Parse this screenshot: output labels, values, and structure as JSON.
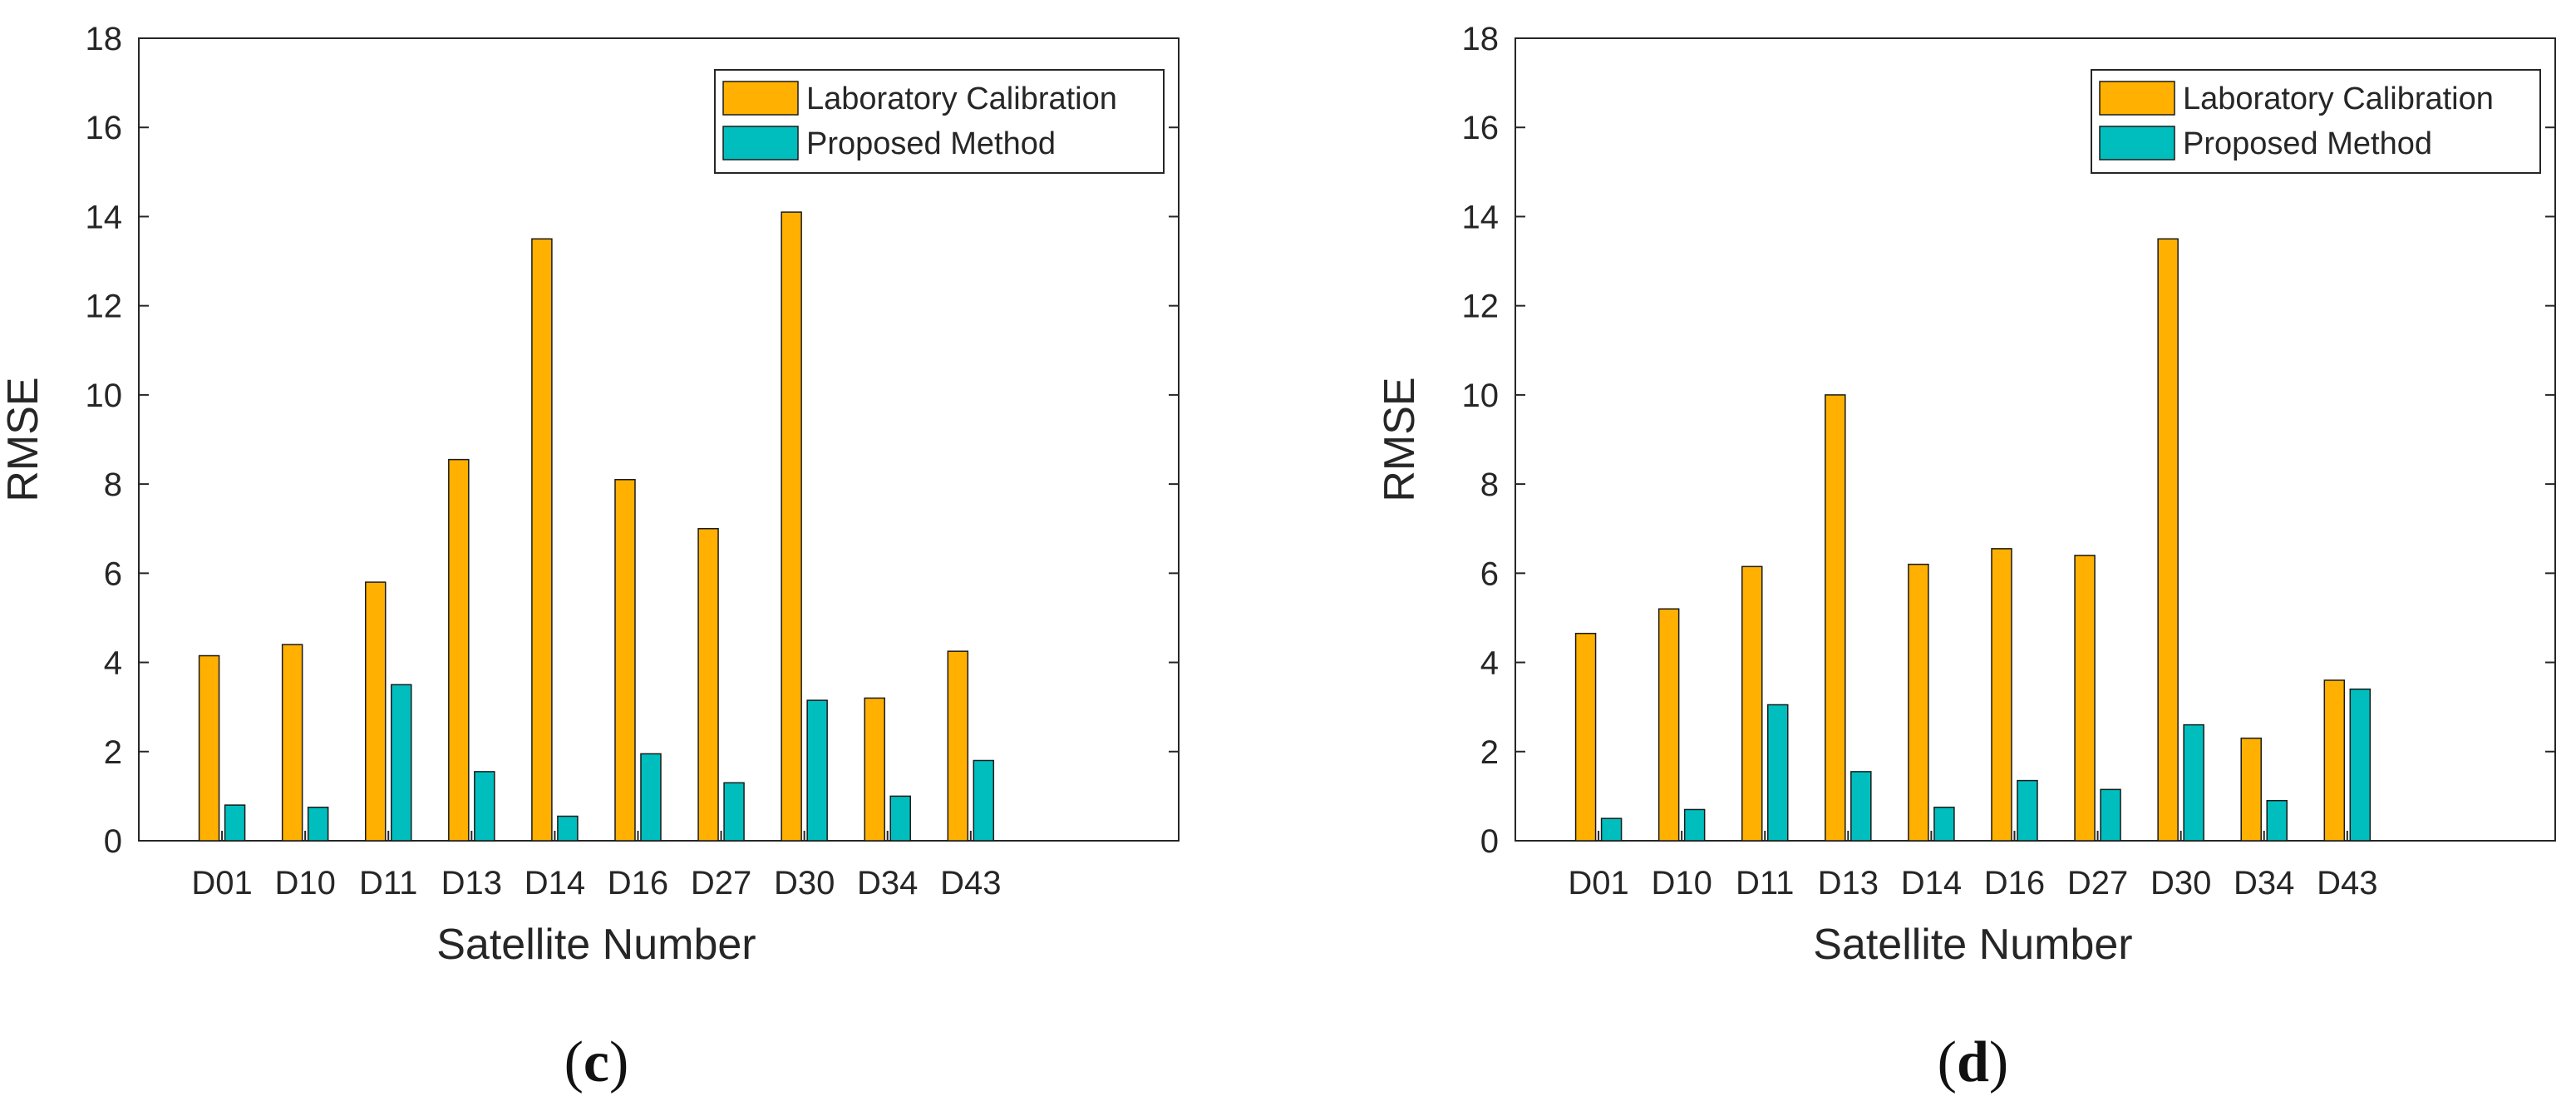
{
  "chart_data": [
    {
      "type": "bar",
      "panel_label_open": "(",
      "panel_label_letter": "c",
      "panel_label_close": ")",
      "xlabel": "Satellite Number",
      "ylabel": "RMSE",
      "ylim": [
        0,
        18
      ],
      "yticks": [
        "0",
        "2",
        "4",
        "6",
        "8",
        "10",
        "12",
        "14",
        "16",
        "18"
      ],
      "categories": [
        "D01",
        "D10",
        "D11",
        "D13",
        "D14",
        "D16",
        "D27",
        "D30",
        "D34",
        "D43"
      ],
      "legend_position": "top-right",
      "series": [
        {
          "name": "Laboratory Calibration",
          "color": "#FFB000",
          "values": [
            4.15,
            4.4,
            5.8,
            8.55,
            13.5,
            8.1,
            7.0,
            14.1,
            3.2,
            4.25
          ]
        },
        {
          "name": "Proposed Method",
          "color": "#00BEBE",
          "values": [
            0.8,
            0.75,
            3.5,
            1.55,
            0.55,
            1.95,
            1.3,
            3.15,
            1.0,
            1.8
          ]
        }
      ]
    },
    {
      "type": "bar",
      "panel_label_open": "(",
      "panel_label_letter": "d",
      "panel_label_close": ")",
      "xlabel": "Satellite Number",
      "ylabel": "RMSE",
      "ylim": [
        0,
        18
      ],
      "yticks": [
        "0",
        "2",
        "4",
        "6",
        "8",
        "10",
        "12",
        "14",
        "16",
        "18"
      ],
      "categories": [
        "D01",
        "D10",
        "D11",
        "D13",
        "D14",
        "D16",
        "D27",
        "D30",
        "D34",
        "D43"
      ],
      "legend_position": "top-right",
      "series": [
        {
          "name": "Laboratory Calibration",
          "color": "#FFB000",
          "values": [
            4.65,
            5.2,
            6.15,
            10.0,
            6.2,
            6.55,
            6.4,
            13.5,
            2.3,
            3.6
          ]
        },
        {
          "name": "Proposed Method",
          "color": "#00BEBE",
          "values": [
            0.5,
            0.7,
            3.05,
            1.55,
            0.75,
            1.35,
            1.15,
            2.6,
            0.9,
            3.4
          ]
        }
      ]
    }
  ]
}
